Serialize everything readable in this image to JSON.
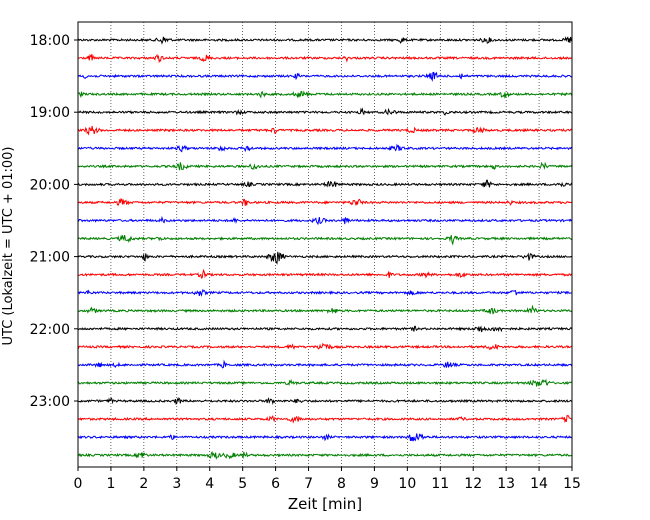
{
  "chart_data": {
    "type": "line",
    "title": "",
    "xlabel": "Zeit  [min]",
    "ylabel": "UTC (Lokalzeit = UTC + 01:00)",
    "xlim": [
      0,
      15
    ],
    "x_ticks": [
      0,
      1,
      2,
      3,
      4,
      5,
      6,
      7,
      8,
      9,
      10,
      11,
      12,
      13,
      14,
      15
    ],
    "y_tick_labels": [
      "18:00",
      "19:00",
      "20:00",
      "21:00",
      "22:00",
      "23:00"
    ],
    "grid": "vertical dotted lines at each minute",
    "trace_interval_minutes": 15,
    "colors": [
      "#000000",
      "#ff0000",
      "#0000ff",
      "#008000"
    ],
    "traces": [
      {
        "start": "18:00",
        "color": "#000000"
      },
      {
        "start": "18:15",
        "color": "#ff0000"
      },
      {
        "start": "18:30",
        "color": "#0000ff"
      },
      {
        "start": "18:45",
        "color": "#008000"
      },
      {
        "start": "19:00",
        "color": "#000000"
      },
      {
        "start": "19:15",
        "color": "#ff0000"
      },
      {
        "start": "19:30",
        "color": "#0000ff"
      },
      {
        "start": "19:45",
        "color": "#008000"
      },
      {
        "start": "20:00",
        "color": "#000000"
      },
      {
        "start": "20:15",
        "color": "#ff0000"
      },
      {
        "start": "20:30",
        "color": "#0000ff"
      },
      {
        "start": "20:45",
        "color": "#008000"
      },
      {
        "start": "21:00",
        "color": "#000000"
      },
      {
        "start": "21:15",
        "color": "#ff0000"
      },
      {
        "start": "21:30",
        "color": "#0000ff"
      },
      {
        "start": "21:45",
        "color": "#008000"
      },
      {
        "start": "22:00",
        "color": "#000000"
      },
      {
        "start": "22:15",
        "color": "#ff0000"
      },
      {
        "start": "22:30",
        "color": "#0000ff"
      },
      {
        "start": "22:45",
        "color": "#008000"
      },
      {
        "start": "23:00",
        "color": "#000000"
      },
      {
        "start": "23:15",
        "color": "#ff0000"
      },
      {
        "start": "23:30",
        "color": "#0000ff"
      },
      {
        "start": "23:45",
        "color": "#008000"
      }
    ]
  }
}
